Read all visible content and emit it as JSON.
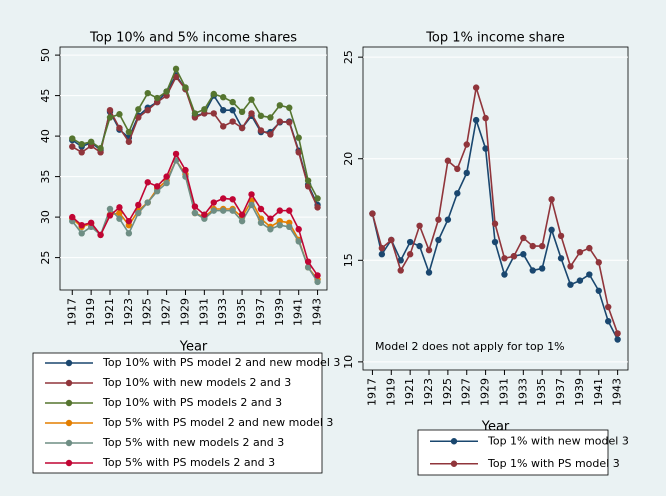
{
  "chart_data": [
    {
      "type": "line",
      "title": "Top 10% and 5% income shares",
      "x_label": "Year",
      "x": [
        1917,
        1918,
        1919,
        1920,
        1921,
        1922,
        1923,
        1924,
        1925,
        1926,
        1927,
        1928,
        1929,
        1930,
        1931,
        1932,
        1933,
        1934,
        1935,
        1936,
        1937,
        1938,
        1939,
        1940,
        1941,
        1942,
        1943
      ],
      "xlim": [
        1915.7,
        1944
      ],
      "xticks": [
        1917,
        1919,
        1921,
        1923,
        1925,
        1927,
        1929,
        1931,
        1933,
        1935,
        1937,
        1939,
        1941,
        1943
      ],
      "ylim": [
        21,
        51
      ],
      "yticks": [
        25,
        30,
        35,
        40,
        45,
        50
      ],
      "series": [
        {
          "name": "Top 10% with PS model 2 and new model 3",
          "color": "#1a476f",
          "values": [
            39.5,
            38.7,
            39.2,
            38.3,
            43.0,
            40.8,
            39.8,
            42.5,
            43.5,
            44.2,
            45.5,
            47.5,
            45.8,
            42.5,
            42.8,
            45.0,
            43.2,
            43.2,
            41.0,
            42.5,
            40.5,
            40.5,
            41.7,
            41.8,
            38.2,
            34.0,
            31.5
          ]
        },
        {
          "name": "Top 10% with new models 2 and 3",
          "color": "#90353b",
          "values": [
            38.7,
            38.0,
            38.8,
            38.0,
            43.2,
            41.0,
            39.3,
            42.3,
            43.2,
            44.2,
            45.0,
            47.3,
            45.8,
            42.3,
            42.8,
            42.8,
            41.2,
            41.8,
            41.0,
            42.8,
            40.7,
            40.2,
            41.8,
            41.7,
            38.0,
            33.8,
            31.2
          ]
        },
        {
          "name": "Top 10% with PS models 2 and 3",
          "color": "#55752f",
          "values": [
            39.7,
            39.0,
            39.3,
            38.5,
            42.3,
            42.7,
            40.5,
            43.3,
            45.3,
            44.7,
            45.5,
            48.3,
            46.0,
            42.8,
            43.3,
            45.2,
            44.8,
            44.2,
            43.0,
            44.5,
            42.5,
            42.3,
            43.8,
            43.5,
            39.8,
            34.5,
            32.3
          ]
        },
        {
          "name": "Top 5% with PS model 2 and new model 3",
          "color": "#e37e00",
          "values": [
            29.8,
            28.8,
            29.2,
            27.8,
            30.3,
            30.5,
            29.0,
            30.8,
            31.8,
            33.5,
            34.5,
            37.0,
            35.3,
            30.5,
            30.0,
            31.0,
            31.0,
            31.0,
            30.0,
            32.0,
            29.8,
            28.8,
            29.5,
            29.3,
            27.2,
            23.8,
            22.3
          ]
        },
        {
          "name": "Top 5% with new models 2 and 3",
          "color": "#6e8e84",
          "values": [
            29.5,
            28.0,
            28.8,
            27.8,
            31.0,
            29.8,
            28.0,
            30.5,
            31.8,
            33.2,
            34.2,
            37.0,
            35.0,
            30.5,
            29.8,
            30.8,
            30.8,
            30.8,
            29.5,
            31.5,
            29.3,
            28.5,
            29.0,
            28.8,
            27.0,
            23.8,
            22.0
          ]
        },
        {
          "name": "Top 5% with PS models 2 and 3",
          "color": "#c10534",
          "values": [
            30.0,
            29.0,
            29.3,
            27.8,
            30.2,
            31.2,
            29.5,
            31.5,
            34.3,
            33.8,
            35.0,
            37.8,
            35.8,
            31.3,
            30.3,
            31.8,
            32.3,
            32.2,
            30.3,
            32.8,
            31.0,
            29.8,
            30.8,
            30.8,
            28.5,
            24.5,
            22.8
          ]
        }
      ]
    },
    {
      "type": "line",
      "title": "Top 1% income share",
      "x_label": "Year",
      "annotation": "Model 2 does not apply for top 1%",
      "x": [
        1917,
        1918,
        1919,
        1920,
        1921,
        1922,
        1923,
        1924,
        1925,
        1926,
        1927,
        1928,
        1929,
        1930,
        1931,
        1932,
        1933,
        1934,
        1935,
        1936,
        1937,
        1938,
        1939,
        1940,
        1941,
        1942,
        1943
      ],
      "xlim": [
        1916,
        1944.1
      ],
      "xticks": [
        1917,
        1919,
        1921,
        1923,
        1925,
        1927,
        1929,
        1931,
        1933,
        1935,
        1937,
        1939,
        1941,
        1943
      ],
      "ylim": [
        9.6,
        25.5
      ],
      "yticks": [
        10,
        15,
        20,
        25
      ],
      "series": [
        {
          "name": "Top 1% with new model 3",
          "color": "#1a476f",
          "values": [
            17.3,
            15.3,
            16.0,
            15.0,
            15.9,
            15.7,
            14.4,
            16.0,
            17.0,
            18.3,
            19.3,
            21.9,
            20.5,
            15.9,
            14.3,
            15.2,
            15.3,
            14.5,
            14.6,
            16.5,
            15.1,
            13.8,
            14.0,
            14.3,
            13.5,
            12.0,
            11.1
          ]
        },
        {
          "name": "Top 1% with PS model 3",
          "color": "#90353b",
          "values": [
            17.3,
            15.6,
            16.0,
            14.5,
            15.3,
            16.7,
            15.5,
            17.0,
            19.9,
            19.5,
            20.7,
            23.5,
            22.0,
            16.8,
            15.1,
            15.2,
            16.1,
            15.7,
            15.7,
            18.0,
            16.2,
            14.7,
            15.4,
            15.6,
            14.9,
            12.7,
            11.4
          ]
        }
      ]
    }
  ]
}
